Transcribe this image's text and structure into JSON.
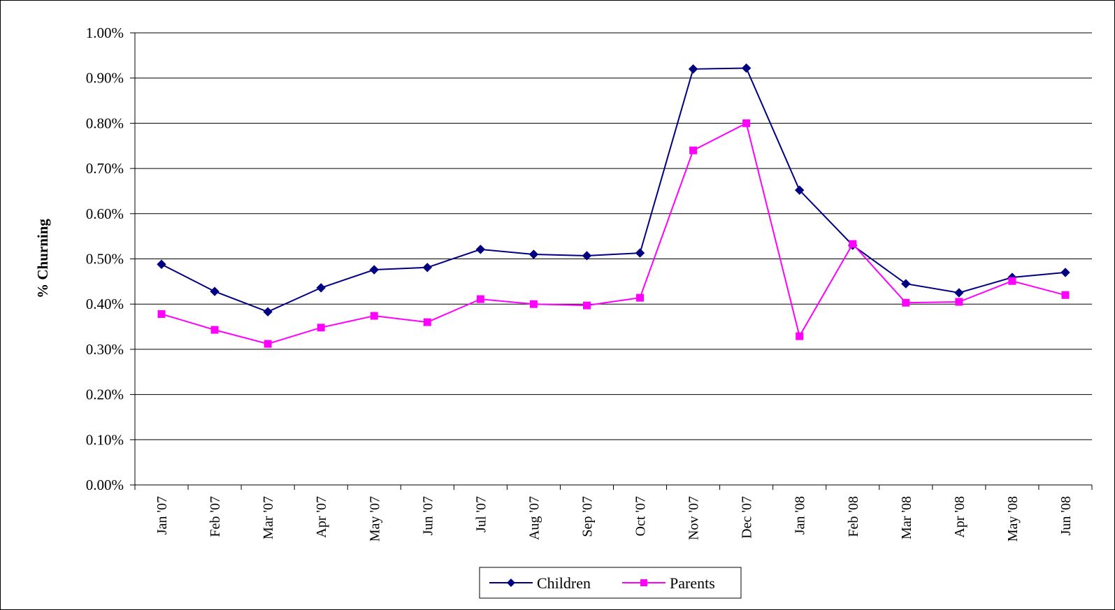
{
  "chart_data": {
    "type": "line",
    "title": "",
    "xlabel": "",
    "ylabel": "% Churning",
    "ylim": [
      0,
      0.01
    ],
    "y_ticks": [
      "0.00%",
      "0.10%",
      "0.20%",
      "0.30%",
      "0.40%",
      "0.50%",
      "0.60%",
      "0.70%",
      "0.80%",
      "0.90%",
      "1.00%"
    ],
    "categories": [
      "Jan '07",
      "Feb '07",
      "Mar '07",
      "Apr '07",
      "May '07",
      "Jun '07",
      "Jul '07",
      "Aug '07",
      "Sep '07",
      "Oct '07",
      "Nov '07",
      "Dec '07",
      "Jan '08",
      "Feb '08",
      "Mar '08",
      "Apr '08",
      "May '08",
      "Jun '08"
    ],
    "grid": true,
    "legend_position": "bottom",
    "series": [
      {
        "name": "Children",
        "color": "#000080",
        "marker": "diamond",
        "values": [
          0.00488,
          0.00428,
          0.00383,
          0.00436,
          0.00476,
          0.00481,
          0.00521,
          0.0051,
          0.00507,
          0.00513,
          0.0092,
          0.00922,
          0.00652,
          0.0053,
          0.00445,
          0.00425,
          0.00459,
          0.0047
        ]
      },
      {
        "name": "Parents",
        "color": "#FF00FF",
        "marker": "square",
        "values": [
          0.00378,
          0.00343,
          0.00312,
          0.00348,
          0.00374,
          0.0036,
          0.00411,
          0.004,
          0.00397,
          0.00414,
          0.0074,
          0.008,
          0.00329,
          0.00533,
          0.00403,
          0.00405,
          0.00451,
          0.0042
        ]
      }
    ]
  }
}
